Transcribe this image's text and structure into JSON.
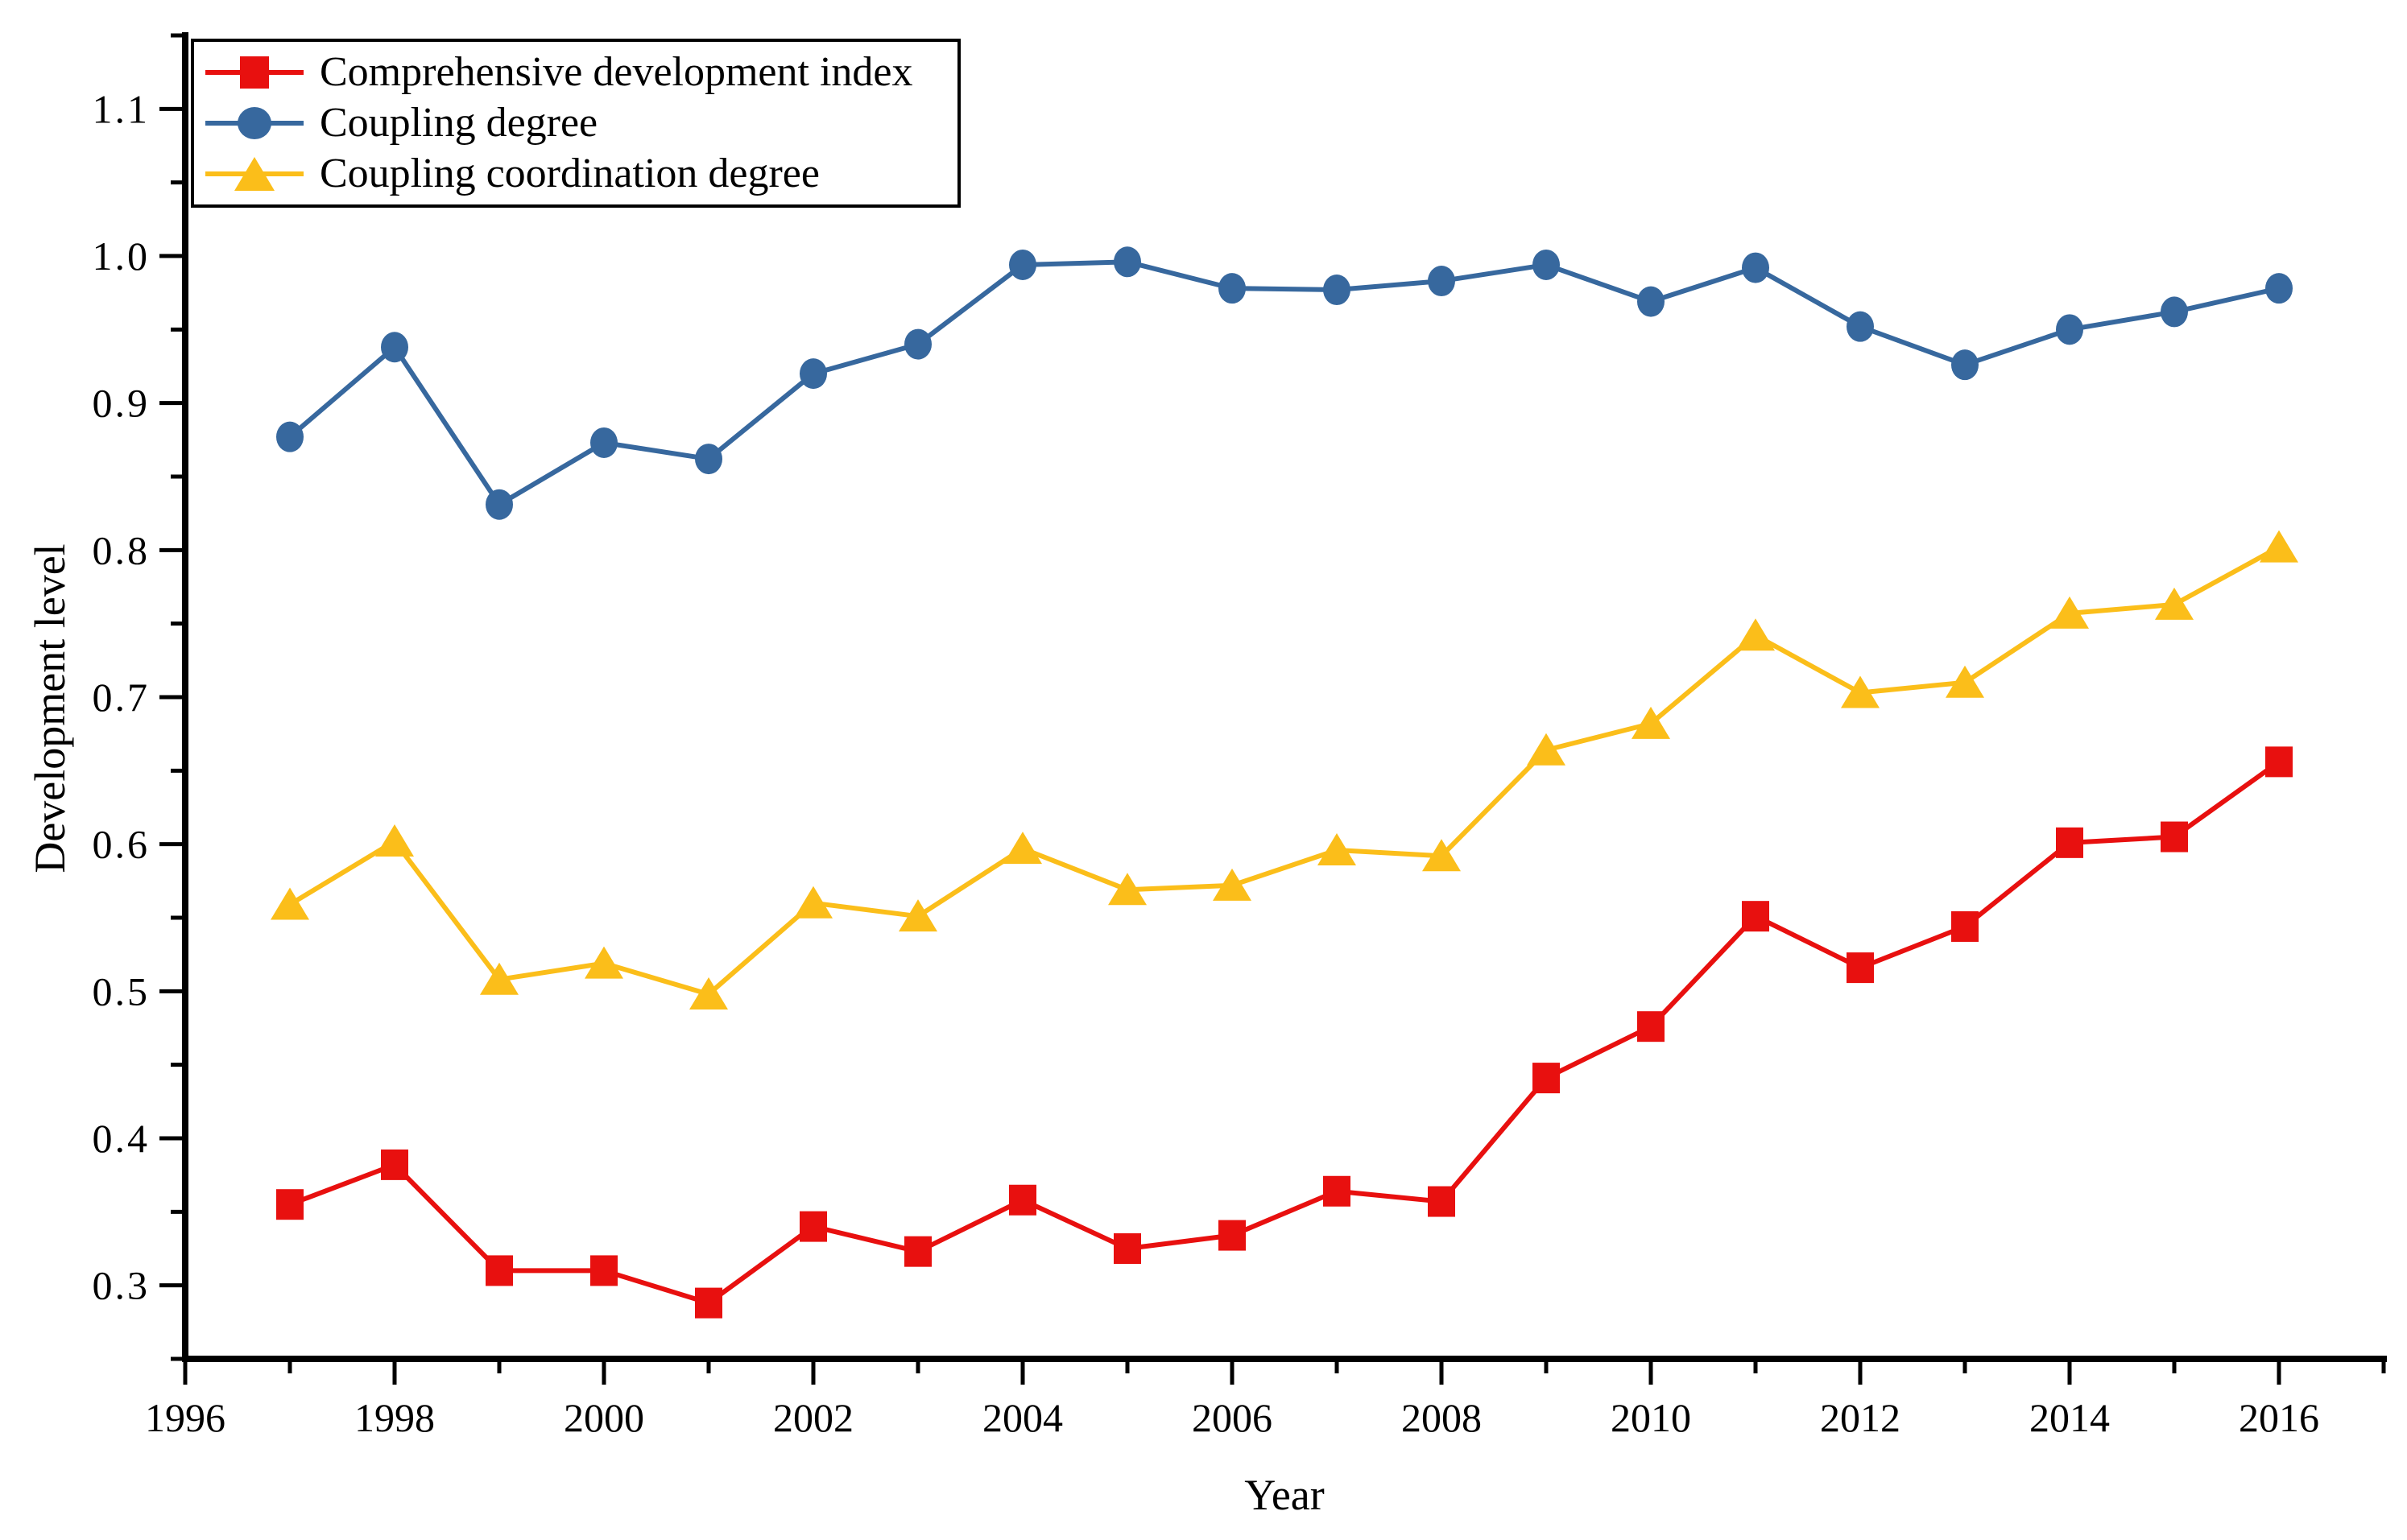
{
  "chart_data": {
    "type": "line",
    "title": "",
    "xlabel": "Year",
    "ylabel": "Development level",
    "x": [
      1997,
      1998,
      1999,
      2000,
      2001,
      2002,
      2003,
      2004,
      2005,
      2006,
      2007,
      2008,
      2009,
      2010,
      2011,
      2012,
      2013,
      2014,
      2015,
      2016
    ],
    "series": [
      {
        "name": "Comprehensive development index",
        "marker": "square",
        "color": "#E8100F",
        "values": [
          0.355,
          0.382,
          0.31,
          0.31,
          0.288,
          0.34,
          0.323,
          0.358,
          0.325,
          0.334,
          0.364,
          0.357,
          0.441,
          0.476,
          0.551,
          0.516,
          0.544,
          0.601,
          0.605,
          0.656
        ]
      },
      {
        "name": "Coupling degree",
        "marker": "circle",
        "color": "#37689E",
        "values": [
          0.877,
          0.938,
          0.831,
          0.873,
          0.862,
          0.92,
          0.94,
          0.994,
          0.996,
          0.978,
          0.977,
          0.983,
          0.994,
          0.969,
          0.992,
          0.952,
          0.926,
          0.95,
          0.962,
          0.978
        ]
      },
      {
        "name": "Coupling coordination degree",
        "marker": "triangle",
        "color": "#FBBE1A",
        "values": [
          0.559,
          0.602,
          0.508,
          0.519,
          0.498,
          0.56,
          0.551,
          0.597,
          0.569,
          0.572,
          0.596,
          0.592,
          0.664,
          0.682,
          0.742,
          0.703,
          0.71,
          0.757,
          0.763,
          0.802
        ]
      }
    ],
    "xlim": [
      1996,
      2017
    ],
    "ylim": [
      0.25,
      1.15
    ],
    "x_major_ticks": [
      1996,
      1998,
      2000,
      2002,
      2004,
      2006,
      2008,
      2010,
      2012,
      2014,
      2016
    ],
    "x_tick_labels": [
      "1996",
      "1998",
      "2000",
      "2002",
      "2004",
      "2006",
      "2008",
      "2010",
      "2012",
      "2014",
      "2016"
    ],
    "y_major_ticks": [
      0.3,
      0.4,
      0.5,
      0.6,
      0.7,
      0.8,
      0.9,
      1.0,
      1.1
    ],
    "y_tick_labels": [
      "0.3",
      "0.4",
      "0.5",
      "0.6",
      "0.7",
      "0.8",
      "0.9",
      "1.0",
      "1.1"
    ],
    "minor_tick_step_x": 1,
    "minor_tick_step_y": 0.05,
    "grid": false,
    "legend_position": "top-left",
    "axis_color": "#000000",
    "background_color": "#ffffff"
  }
}
